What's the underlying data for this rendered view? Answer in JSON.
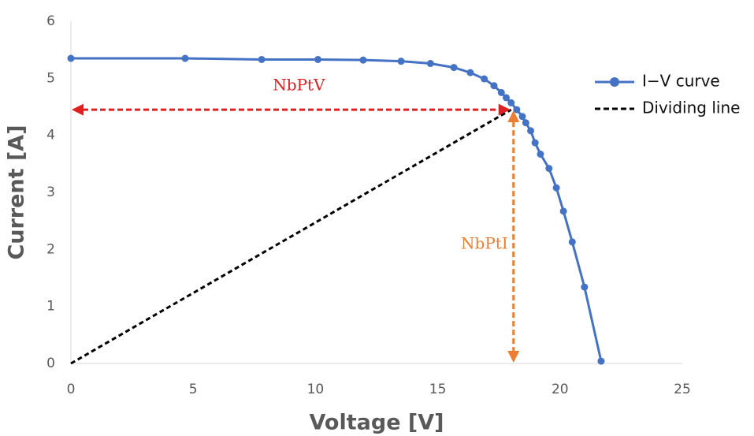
{
  "chart_data": {
    "type": "line",
    "x_label": "Voltage [V]",
    "y_label": "Current [A]",
    "xlim": [
      0,
      25
    ],
    "xticks": [
      0,
      5,
      10,
      15,
      20,
      25
    ],
    "ylim": [
      0,
      6
    ],
    "yticks": [
      0,
      1,
      2,
      3,
      4,
      5,
      6
    ],
    "legend": "right",
    "series": [
      {
        "name": "I−V curve",
        "color": "#4472c4",
        "markers": true,
        "dashed": false,
        "x": [
          0,
          4.67,
          7.8,
          10.1,
          11.95,
          13.5,
          14.7,
          15.66,
          16.33,
          16.9,
          17.3,
          17.6,
          17.8,
          18.0,
          18.23,
          18.46,
          18.6,
          18.8,
          18.98,
          19.2,
          19.55,
          19.85,
          20.14,
          20.5,
          21.0,
          21.68
        ],
        "values": [
          5.35,
          5.35,
          5.33,
          5.33,
          5.32,
          5.3,
          5.26,
          5.19,
          5.1,
          4.99,
          4.87,
          4.75,
          4.66,
          4.57,
          4.45,
          4.33,
          4.22,
          4.08,
          3.87,
          3.67,
          3.42,
          3.08,
          2.67,
          2.13,
          1.34,
          0.04
        ]
      },
      {
        "name": "Dividing line",
        "color": "#000000",
        "markers": false,
        "dashed": true,
        "x": [
          0,
          18
        ],
        "values": [
          0,
          4.45
        ]
      }
    ],
    "annotations": [
      {
        "text": "NbPtV",
        "color": "#e02020",
        "direction": "horizontal"
      },
      {
        "text": "NbPtI",
        "color": "#ed7d31",
        "direction": "vertical"
      }
    ]
  }
}
